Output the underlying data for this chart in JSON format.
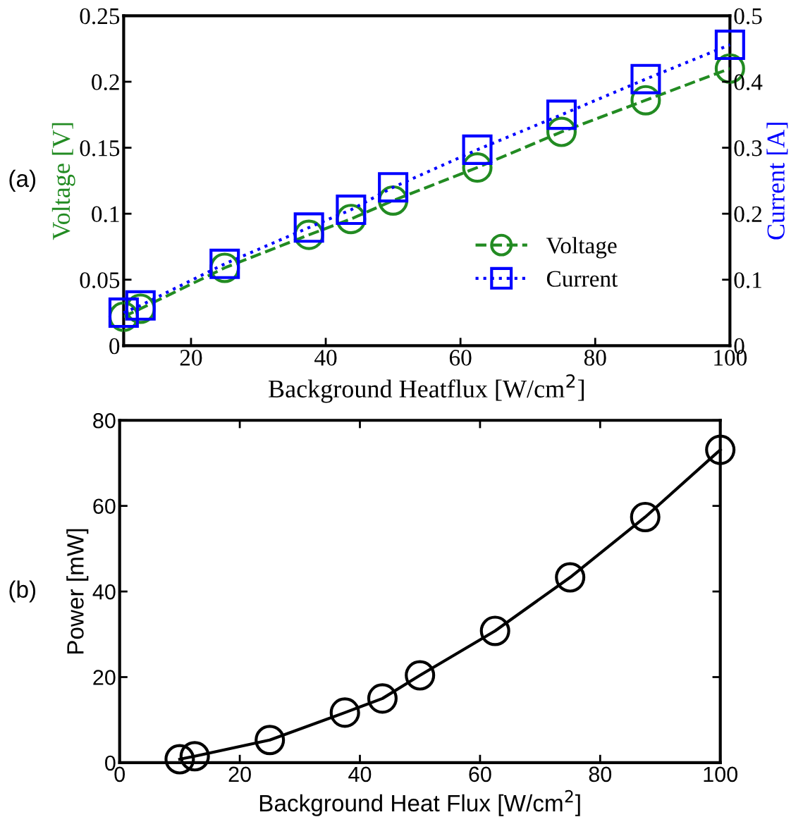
{
  "chart_data": [
    {
      "type": "line",
      "xlabel": "Background Heatflux [W/cm$^{2}$]",
      "ylabel": "Voltage [V]",
      "y2label": "Current [A]",
      "annotations": [
        "(a)"
      ],
      "x": [
        10,
        12.5,
        25,
        37.5,
        43.75,
        50,
        62.5,
        75,
        87.5,
        100
      ],
      "series": [
        {
          "name": "Voltage",
          "color": "#228b22",
          "marker": "circle",
          "line_style": "dashed",
          "values": [
            0.022,
            0.028,
            0.059,
            0.084,
            0.096,
            0.11,
            0.135,
            0.162,
            0.186,
            0.21
          ]
        },
        {
          "name": "Current",
          "color": "#0000ff",
          "marker": "square",
          "line_style": "dotted",
          "axis": "y2",
          "values": [
            0.05,
            0.061,
            0.124,
            0.179,
            0.206,
            0.24,
            0.297,
            0.35,
            0.404,
            0.456
          ]
        }
      ],
      "xlim": [
        10,
        100
      ],
      "xticks": [
        20,
        40,
        60,
        80,
        100
      ],
      "ylim": [
        0,
        0.25
      ],
      "yticks": [
        0,
        0.05,
        0.1,
        0.15,
        0.2,
        0.25
      ],
      "y2lim": [
        0,
        0.5
      ],
      "y2ticks": [
        0,
        0.1,
        0.2,
        0.3,
        0.4,
        0.5
      ],
      "legend": "lower right"
    },
    {
      "type": "line",
      "xlabel": "Background Heat Flux [W/cm$^{2}$]",
      "ylabel": "Power [mW]",
      "annotations": [
        "(b)"
      ],
      "x": [
        10,
        12.5,
        25,
        37.5,
        43.75,
        50,
        62.5,
        75,
        87.5,
        100
      ],
      "series": [
        {
          "color": "#000000",
          "marker": "circle",
          "line_style": "solid",
          "values": [
            0.8,
            1.5,
            5.3,
            11.7,
            15,
            20.4,
            30.8,
            43.3,
            57.4,
            73.1
          ]
        }
      ],
      "xlim": [
        0,
        100
      ],
      "xticks": [
        0,
        20,
        40,
        60,
        80,
        100
      ],
      "ylim": [
        0,
        80
      ],
      "yticks": [
        0,
        20,
        40,
        60,
        80
      ]
    }
  ]
}
